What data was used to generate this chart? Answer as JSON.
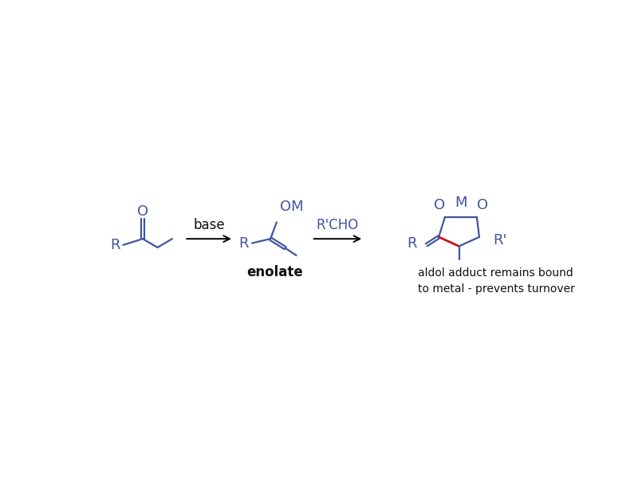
{
  "bg_color": "white",
  "blue": "#4055a0",
  "red": "#cc1111",
  "black": "#111111",
  "figsize": [
    8.0,
    6.0
  ],
  "dpi": 100,
  "arrow1_label": "base",
  "arrow2_label": "R'CHO",
  "enolate_label": "enolate",
  "product_label": "aldol adduct remains bound\nto metal - prevents turnover",
  "lw": 1.6
}
